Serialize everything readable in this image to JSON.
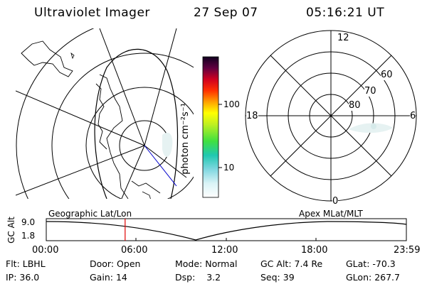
{
  "header": {
    "instrument": "Ultraviolet Imager",
    "date": "27 Sep 07",
    "time": "05:16:21 UT"
  },
  "colorbar": {
    "unit_label": "photon cm⁻²s⁻¹",
    "ticks": [
      "100",
      "10"
    ]
  },
  "polar_plot": {
    "mlt_labels": [
      "12",
      "18",
      "6",
      "0"
    ],
    "mlat_labels": [
      "60",
      "70",
      "80"
    ]
  },
  "timeline": {
    "left_label": "Geographic Lat/Lon",
    "right_label": "Apex MLat/MLT",
    "axis_label": "GC Alt",
    "y_ticks": [
      "9.0",
      "1.8"
    ],
    "x_ticks": [
      "00:00",
      "06:00",
      "12:00",
      "18:00",
      "23:59"
    ],
    "current_time_fraction": 0.219
  },
  "footer": {
    "row1": [
      {
        "label": "Flt:",
        "value": "LBHL"
      },
      {
        "label": "Door:",
        "value": "Open"
      },
      {
        "label": "Mode:",
        "value": "Normal"
      },
      {
        "label": "GC Alt:",
        "value": "7.4 Re"
      },
      {
        "label": "GLat:",
        "value": "-70.3"
      }
    ],
    "row2": [
      {
        "label": "IP:",
        "value": "36.0"
      },
      {
        "label": "Gain:",
        "value": "14"
      },
      {
        "label": "Dsp:",
        "value": "3.2"
      },
      {
        "label": "Seq:",
        "value": "39"
      },
      {
        "label": "GLon:",
        "value": "267.7"
      }
    ]
  },
  "colors": {
    "marker": "#e00000",
    "orbit": "#0000cc"
  }
}
